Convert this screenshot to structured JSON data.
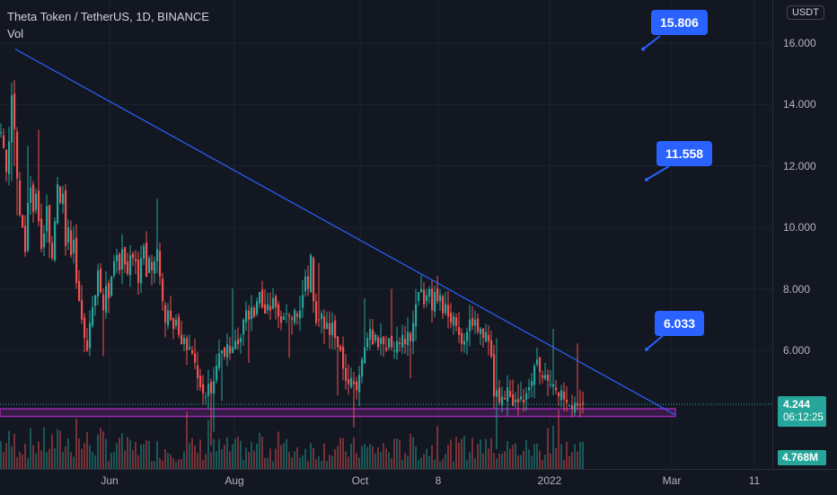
{
  "header": {
    "symbol": "Theta Token / TetherUS, 1D, BINANCE",
    "indicator": "Vol"
  },
  "currency_label": "USDT",
  "price_tag": {
    "price": "4.244",
    "countdown": "06:12:25"
  },
  "volume_tag": "4.768M",
  "callouts": [
    {
      "label": "15.806",
      "price": 15.806
    },
    {
      "label": "11.558",
      "price": 11.558
    },
    {
      "label": "6.033",
      "price": 6.033
    }
  ],
  "colors": {
    "background": "#131722",
    "up": "#26a69a",
    "down": "#ef5350",
    "trendline": "#2962ff",
    "support_zone": "#9c27b0",
    "callout": "#2962ff"
  },
  "chart_data": {
    "type": "candlestick",
    "title": "Theta Token / TetherUS, 1D, BINANCE",
    "y_ticks": [
      "16.000",
      "14.000",
      "12.000",
      "10.000",
      "8.000",
      "6.000"
    ],
    "y_tick_values": [
      16,
      14,
      12,
      10,
      8,
      6
    ],
    "x_ticks": [
      "Jun",
      "Aug",
      "Oct",
      "8",
      "2022",
      "Mar",
      "11"
    ],
    "ylim": [
      2.4,
      17.3
    ],
    "last_price": 4.244,
    "last_volume": "4.768M",
    "price_path": [
      [
        0,
        13.1
      ],
      [
        3,
        12.6
      ],
      [
        6,
        11.8
      ],
      [
        9,
        12.8
      ],
      [
        12,
        14.3
      ],
      [
        15,
        13.2
      ],
      [
        18,
        11.6
      ],
      [
        21,
        10.4
      ],
      [
        24,
        10.0
      ],
      [
        27,
        9.2
      ],
      [
        30,
        10.8
      ],
      [
        33,
        11.3
      ],
      [
        36,
        10.5
      ],
      [
        39,
        11.1
      ],
      [
        42,
        10.2
      ],
      [
        45,
        9.3
      ],
      [
        48,
        9.8
      ],
      [
        51,
        10.7
      ],
      [
        54,
        9.5
      ],
      [
        57,
        9.0
      ],
      [
        60,
        10.2
      ],
      [
        63,
        11.4
      ],
      [
        66,
        10.8
      ],
      [
        69,
        11.1
      ],
      [
        72,
        9.4
      ],
      [
        75,
        10.0
      ],
      [
        78,
        9.1
      ],
      [
        81,
        9.6
      ],
      [
        84,
        8.2
      ],
      [
        87,
        7.6
      ],
      [
        90,
        7.0
      ],
      [
        93,
        6.4
      ],
      [
        96,
        6.0
      ],
      [
        99,
        6.9
      ],
      [
        102,
        7.4
      ],
      [
        105,
        7.8
      ],
      [
        108,
        8.6
      ],
      [
        111,
        7.9
      ],
      [
        114,
        7.3
      ],
      [
        117,
        8.1
      ],
      [
        120,
        7.7
      ],
      [
        123,
        8.4
      ],
      [
        126,
        8.9
      ],
      [
        129,
        9.1
      ],
      [
        132,
        8.6
      ],
      [
        135,
        9.3
      ],
      [
        138,
        8.8
      ],
      [
        141,
        8.5
      ],
      [
        144,
        9.1
      ],
      [
        147,
        9.0
      ],
      [
        150,
        8.9
      ],
      [
        153,
        8.2
      ],
      [
        156,
        9.0
      ],
      [
        159,
        9.4
      ],
      [
        162,
        8.4
      ],
      [
        165,
        9.0
      ],
      [
        168,
        8.6
      ],
      [
        171,
        8.9
      ],
      [
        174,
        9.3
      ],
      [
        177,
        8.4
      ],
      [
        180,
        7.6
      ],
      [
        183,
        6.9
      ],
      [
        186,
        7.3
      ],
      [
        189,
        7.0
      ],
      [
        192,
        6.7
      ],
      [
        195,
        7.0
      ],
      [
        198,
        6.5
      ],
      [
        201,
        6.2
      ],
      [
        204,
        6.4
      ],
      [
        207,
        6.0
      ],
      [
        210,
        6.1
      ],
      [
        213,
        5.9
      ],
      [
        216,
        5.6
      ],
      [
        219,
        5.1
      ],
      [
        222,
        4.8
      ],
      [
        225,
        4.6
      ],
      [
        228,
        4.5
      ],
      [
        231,
        4.9
      ],
      [
        234,
        4.6
      ],
      [
        237,
        5.0
      ],
      [
        240,
        5.5
      ],
      [
        243,
        5.9
      ],
      [
        246,
        6.0
      ],
      [
        249,
        5.8
      ],
      [
        252,
        6.2
      ],
      [
        255,
        5.9
      ],
      [
        258,
        6.1
      ],
      [
        261,
        6.3
      ],
      [
        264,
        6.2
      ],
      [
        267,
        6.4
      ],
      [
        270,
        7.0
      ],
      [
        273,
        7.3
      ],
      [
        276,
        7.0
      ],
      [
        279,
        7.4
      ],
      [
        282,
        7.1
      ],
      [
        285,
        7.6
      ],
      [
        288,
        7.9
      ],
      [
        291,
        7.4
      ],
      [
        294,
        7.2
      ],
      [
        297,
        7.5
      ],
      [
        300,
        7.3
      ],
      [
        303,
        7.7
      ],
      [
        306,
        7.4
      ],
      [
        309,
        7.1
      ],
      [
        312,
        6.9
      ],
      [
        315,
        7.1
      ],
      [
        318,
        7.2
      ],
      [
        321,
        7.1
      ],
      [
        324,
        7.0
      ],
      [
        327,
        7.3
      ],
      [
        330,
        7.1
      ],
      [
        333,
        7.3
      ],
      [
        336,
        7.8
      ],
      [
        339,
        8.4
      ],
      [
        342,
        8.0
      ],
      [
        345,
        9.1
      ],
      [
        348,
        7.6
      ],
      [
        351,
        6.9
      ],
      [
        354,
        7.0
      ],
      [
        357,
        7.2
      ],
      [
        360,
        6.7
      ],
      [
        363,
        6.9
      ],
      [
        366,
        6.5
      ],
      [
        369,
        6.9
      ],
      [
        372,
        6.4
      ],
      [
        375,
        6.1
      ],
      [
        378,
        6.0
      ],
      [
        381,
        5.4
      ],
      [
        384,
        5.0
      ],
      [
        387,
        4.9
      ],
      [
        390,
        5.1
      ],
      [
        393,
        4.9
      ],
      [
        396,
        4.7
      ],
      [
        399,
        5.2
      ],
      [
        402,
        5.7
      ],
      [
        405,
        6.1
      ],
      [
        408,
        6.4
      ],
      [
        411,
        6.7
      ],
      [
        414,
        6.2
      ],
      [
        417,
        6.5
      ],
      [
        420,
        6.1
      ],
      [
        423,
        6.4
      ],
      [
        426,
        6.2
      ],
      [
        429,
        6.0
      ],
      [
        432,
        6.4
      ],
      [
        435,
        6.1
      ],
      [
        438,
        6.0
      ],
      [
        441,
        6.3
      ],
      [
        444,
        6.2
      ],
      [
        447,
        6.5
      ],
      [
        450,
        6.2
      ],
      [
        453,
        6.6
      ],
      [
        456,
        6.3
      ],
      [
        459,
        6.9
      ],
      [
        462,
        7.5
      ],
      [
        465,
        7.9
      ],
      [
        468,
        8.0
      ],
      [
        471,
        7.5
      ],
      [
        474,
        7.8
      ],
      [
        477,
        8.0
      ],
      [
        480,
        7.3
      ],
      [
        483,
        7.9
      ],
      [
        486,
        7.6
      ],
      [
        489,
        7.8
      ],
      [
        492,
        7.2
      ],
      [
        495,
        7.5
      ],
      [
        498,
        7.1
      ],
      [
        501,
        6.9
      ],
      [
        504,
        7.1
      ],
      [
        507,
        6.8
      ],
      [
        510,
        6.5
      ],
      [
        513,
        6.2
      ],
      [
        516,
        6.3
      ],
      [
        519,
        6.6
      ],
      [
        522,
        7.0
      ],
      [
        525,
        6.8
      ],
      [
        528,
        7.0
      ],
      [
        531,
        6.6
      ],
      [
        534,
        6.7
      ],
      [
        537,
        6.4
      ],
      [
        540,
        6.6
      ],
      [
        543,
        6.3
      ],
      [
        546,
        5.8
      ],
      [
        549,
        4.5
      ],
      [
        552,
        4.7
      ],
      [
        555,
        4.3
      ],
      [
        558,
        4.5
      ],
      [
        561,
        4.4
      ],
      [
        564,
        4.8
      ],
      [
        567,
        4.5
      ],
      [
        570,
        4.2
      ],
      [
        573,
        4.4
      ],
      [
        576,
        4.3
      ],
      [
        579,
        4.5
      ],
      [
        582,
        4.3
      ],
      [
        585,
        4.6
      ],
      [
        588,
        4.8
      ],
      [
        591,
        5.0
      ],
      [
        594,
        5.5
      ],
      [
        597,
        5.7
      ],
      [
        600,
        5.3
      ],
      [
        603,
        5.1
      ],
      [
        606,
        5.2
      ],
      [
        609,
        5.0
      ],
      [
        612,
        4.9
      ],
      [
        615,
        4.9
      ],
      [
        618,
        4.7
      ],
      [
        621,
        4.5
      ],
      [
        624,
        4.7
      ],
      [
        627,
        4.4
      ],
      [
        630,
        4.3
      ],
      [
        633,
        4.2
      ],
      [
        636,
        4.1
      ],
      [
        639,
        4.3
      ],
      [
        642,
        4.2
      ],
      [
        645,
        4.2
      ],
      [
        648,
        4.244
      ]
    ],
    "trendline": {
      "from": [
        "start",
        15.806
      ],
      "to": [
        "near Mar",
        3.9
      ]
    },
    "support_zone": [
      3.85,
      4.1
    ]
  }
}
